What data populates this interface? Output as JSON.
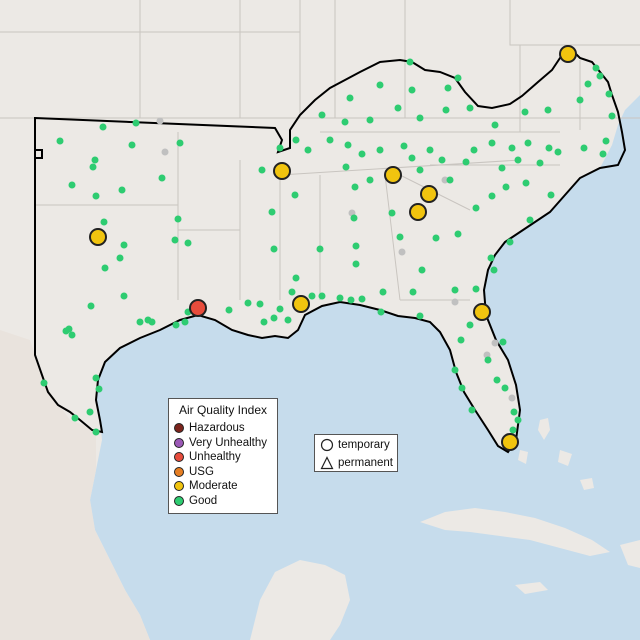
{
  "colors": {
    "ocean": "#c6dcec",
    "land": "#ece9e5",
    "borders": "#c9c5c0",
    "region_outline": "#000000",
    "good": "#2ecc71",
    "moderate": "#f1c40f",
    "usg": "#e67e22",
    "unhealthy": "#e74c3c",
    "very_unhealthy": "#9b59b6",
    "hazardous": "#7b241c",
    "inactive": "#c0c0c0"
  },
  "legend": {
    "title": "Air Quality Index",
    "items": [
      {
        "label": "Hazardous",
        "color": "#7b241c"
      },
      {
        "label": "Very Unhealthy",
        "color": "#9b59b6"
      },
      {
        "label": "Unhealthy",
        "color": "#e74c3c"
      },
      {
        "label": "USG",
        "color": "#e67e22"
      },
      {
        "label": "Moderate",
        "color": "#f1c40f"
      },
      {
        "label": "Good",
        "color": "#2ecc71"
      }
    ]
  },
  "shape_legend": {
    "items": [
      {
        "label": "temporary",
        "shape": "circle-icon"
      },
      {
        "label": "permanent",
        "shape": "triangle-icon"
      }
    ]
  }
}
